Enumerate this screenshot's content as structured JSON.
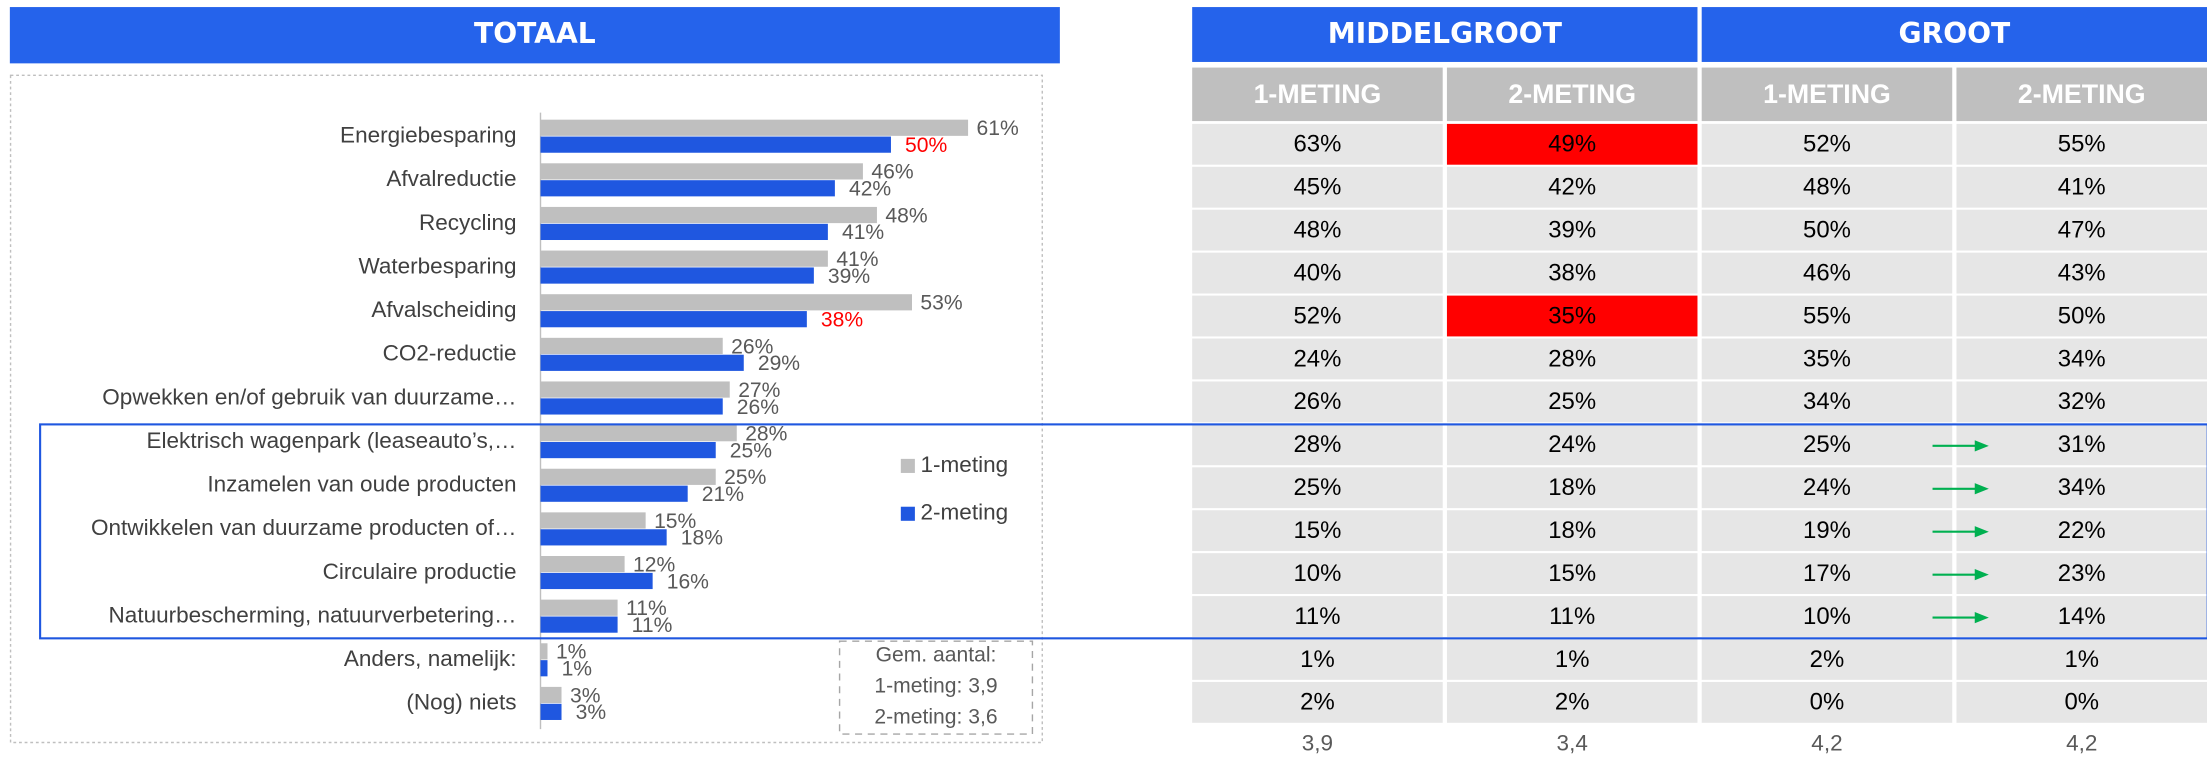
{
  "chart_data": {
    "type": "bar",
    "orientation": "horizontal",
    "title": "TOTAAL",
    "categories": [
      "Energiebesparing",
      "Afvalreductie",
      "Recycling",
      "Waterbesparing",
      "Afvalscheiding",
      "CO2-reductie",
      "Opwekken en/of gebruik van duurzame…",
      "Elektrisch wagenpark (leaseauto’s,…",
      "Inzamelen van oude producten",
      "Ontwikkelen van duurzame producten of…",
      "Circulaire productie",
      "Natuurbescherming, natuurverbetering…",
      "Anders, namelijk:",
      "(Nog) niets"
    ],
    "series": [
      {
        "name": "1-meting",
        "color": "#bfbfbf",
        "label_color": "#595959",
        "values": [
          61,
          46,
          48,
          41,
          53,
          26,
          27,
          28,
          25,
          15,
          12,
          11,
          1,
          3
        ],
        "value_labels": [
          "61%",
          "46%",
          "48%",
          "41%",
          "53%",
          "26%",
          "27%",
          "28%",
          "25%",
          "15%",
          "12%",
          "11%",
          "1%",
          "3%"
        ]
      },
      {
        "name": "2-meting",
        "color": "#1f57e0",
        "label_color": "#595959",
        "highlight_color": "#ff0000",
        "highlighted": [
          0,
          4
        ],
        "values": [
          50,
          42,
          41,
          39,
          38,
          29,
          26,
          25,
          21,
          18,
          16,
          11,
          1,
          3
        ],
        "value_labels": [
          "50%",
          "42%",
          "41%",
          "39%",
          "38%",
          "29%",
          "26%",
          "25%",
          "21%",
          "18%",
          "16%",
          "11%",
          "1%",
          "3%"
        ]
      }
    ],
    "xlim": [
      0,
      100
    ],
    "note": [
      "Gem. aantal:",
      "1-meting: 3,9",
      "2-meting: 3,6"
    ]
  },
  "table": {
    "groups": [
      "MIDDELGROOT",
      "GROOT"
    ],
    "columns": [
      "1-METING",
      "2-METING",
      "1-METING",
      "2-METING"
    ],
    "rows": [
      [
        "63%",
        "49%",
        "52%",
        "55%"
      ],
      [
        "45%",
        "42%",
        "48%",
        "41%"
      ],
      [
        "48%",
        "39%",
        "50%",
        "47%"
      ],
      [
        "40%",
        "38%",
        "46%",
        "43%"
      ],
      [
        "52%",
        "35%",
        "55%",
        "50%"
      ],
      [
        "24%",
        "28%",
        "35%",
        "34%"
      ],
      [
        "26%",
        "25%",
        "34%",
        "32%"
      ],
      [
        "28%",
        "24%",
        "25%",
        "31%"
      ],
      [
        "25%",
        "18%",
        "24%",
        "34%"
      ],
      [
        "15%",
        "18%",
        "19%",
        "22%"
      ],
      [
        "10%",
        "15%",
        "17%",
        "23%"
      ],
      [
        "11%",
        "11%",
        "10%",
        "14%"
      ],
      [
        "1%",
        "1%",
        "2%",
        "1%"
      ],
      [
        "2%",
        "2%",
        "0%",
        "0%"
      ]
    ],
    "footer": [
      "3,9",
      "3,4",
      "4,2",
      "4,2"
    ],
    "highlight_color": "#ff0000",
    "highlight_cells": [
      [
        0,
        1
      ],
      [
        4,
        1
      ]
    ],
    "arrow_color": "#00b050",
    "arrow_rows": [
      7,
      8,
      9,
      10,
      11
    ]
  }
}
